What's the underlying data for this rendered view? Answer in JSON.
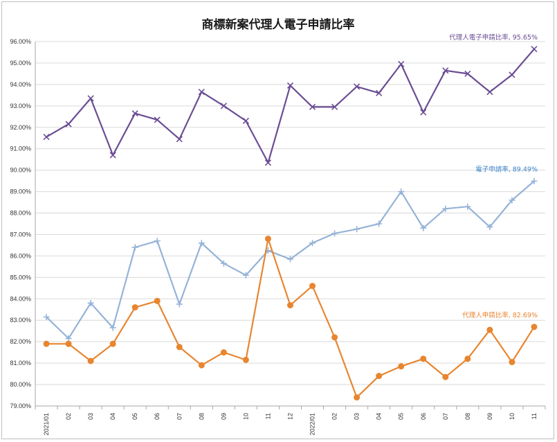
{
  "chart_data": {
    "type": "line",
    "title": "商標新案代理人電子申請比率",
    "categories": [
      "2021/01",
      "02",
      "03",
      "04",
      "05",
      "06",
      "07",
      "08",
      "09",
      "10",
      "11",
      "12",
      "2022/01",
      "02",
      "03",
      "04",
      "05",
      "06",
      "07",
      "08",
      "09",
      "10",
      "11"
    ],
    "ylim": [
      79,
      96
    ],
    "yticks": [
      79,
      80,
      81,
      82,
      83,
      84,
      85,
      86,
      87,
      88,
      89,
      90,
      91,
      92,
      93,
      94,
      95,
      96
    ],
    "ytick_labels": [
      "79.00%",
      "80.00%",
      "81.00%",
      "82.00%",
      "83.00%",
      "84.00%",
      "85.00%",
      "86.00%",
      "87.00%",
      "88.00%",
      "89.00%",
      "90.00%",
      "91.00%",
      "92.00%",
      "93.00%",
      "94.00%",
      "95.00%",
      "96.00%"
    ],
    "grid": true,
    "series": [
      {
        "name": "代理人電子申請比率",
        "color": "#6a4c93",
        "marker": "x",
        "values": [
          91.55,
          92.15,
          93.35,
          90.7,
          92.65,
          92.35,
          91.45,
          93.65,
          93.0,
          92.3,
          90.35,
          93.95,
          92.95,
          92.95,
          93.9,
          93.6,
          94.95,
          92.7,
          94.65,
          94.5,
          93.65,
          94.45,
          95.65
        ],
        "end_label": "代理人電子申請比率, 95.65%"
      },
      {
        "name": "電子申請率",
        "color": "#95b3d7",
        "label_color": "#3a83c8",
        "marker": "plus",
        "values": [
          83.15,
          82.15,
          83.8,
          82.65,
          86.4,
          86.7,
          83.75,
          86.6,
          85.65,
          85.1,
          86.25,
          85.85,
          86.6,
          87.05,
          87.25,
          87.5,
          89.0,
          87.3,
          88.2,
          88.3,
          87.35,
          88.6,
          89.49
        ],
        "end_label": "電子申請率, 89.49%"
      },
      {
        "name": "代理人申請比率",
        "color": "#e8852f",
        "marker": "circle",
        "values": [
          81.9,
          81.9,
          81.1,
          81.9,
          83.6,
          83.9,
          81.75,
          80.9,
          81.5,
          81.15,
          86.8,
          83.7,
          84.6,
          82.2,
          79.4,
          80.4,
          80.85,
          81.2,
          80.35,
          81.2,
          82.55,
          81.05,
          82.69
        ],
        "end_label": "代理人申請比率, 82.69%"
      }
    ]
  }
}
